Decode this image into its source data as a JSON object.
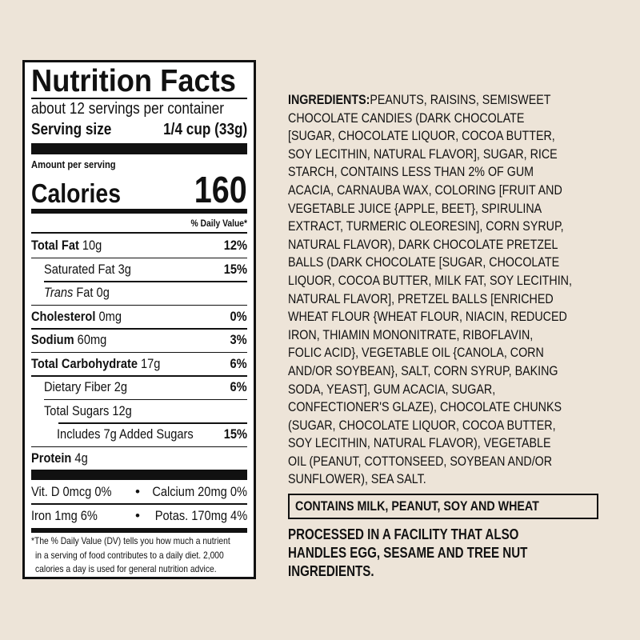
{
  "label": {
    "title": "Nutrition Facts",
    "servings": "about 12 servings per container",
    "serving_size_label": "Serving size",
    "serving_size_value": "1/4 cup (33g)",
    "amount_per_serving": "Amount per serving",
    "calories_label": "Calories",
    "calories_value": "160",
    "dv_header": "% Daily Value*",
    "nutrients": [
      {
        "name": "Total Fat",
        "amount": "10g",
        "dv": "12%"
      },
      {
        "name": "Saturated Fat",
        "amount": "3g",
        "dv": "15%"
      },
      {
        "name": "Trans",
        "name_rest": "Fat",
        "amount": "0g",
        "dv": ""
      },
      {
        "name": "Cholesterol",
        "amount": "0mg",
        "dv": "0%"
      },
      {
        "name": "Sodium",
        "amount": "60mg",
        "dv": "3%"
      },
      {
        "name": "Total Carbohydrate",
        "amount": "17g",
        "dv": "6%"
      },
      {
        "name": "Dietary Fiber",
        "amount": "2g",
        "dv": "6%"
      },
      {
        "name": "Total Sugars",
        "amount": "12g",
        "dv": ""
      },
      {
        "name": "Includes 7g Added Sugars",
        "amount": "",
        "dv": "15%"
      },
      {
        "name": "Protein",
        "amount": "4g",
        "dv": ""
      }
    ],
    "vitamins": [
      {
        "left": "Vit. D 0mcg 0%",
        "right": "Calcium 20mg 0%"
      },
      {
        "left": "Iron 1mg 6%",
        "right": "Potas. 170mg 4%"
      }
    ],
    "bullet": "•",
    "footnote": [
      "*The % Daily Value (DV) tells you how much a nutrient",
      "in a serving of food contributes to a daily diet. 2,000",
      "calories a day is used for general nutrition advice."
    ]
  },
  "ingredients": {
    "heading": "INGREDIENTS:",
    "lines": [
      " PEANUTS, RAISINS, SEMISWEET",
      "CHOCOLATE CANDIES (DARK CHOCOLATE",
      "[SUGAR, CHOCOLATE LIQUOR, COCOA BUTTER,",
      "SOY LECITHIN, NATURAL FLAVOR], SUGAR, RICE",
      "STARCH, CONTAINS LESS THAN 2% OF GUM",
      "ACACIA, CARNAUBA WAX, COLORING [FRUIT AND",
      "VEGETABLE JUICE {APPLE, BEET}, SPIRULINA",
      "EXTRACT, TURMERIC OLEORESIN], CORN SYRUP,",
      "NATURAL FLAVOR), DARK CHOCOLATE PRETZEL",
      "BALLS (DARK CHOCOLATE [SUGAR, CHOCOLATE",
      "LIQUOR, COCOA BUTTER, MILK FAT, SOY LECITHIN,",
      "NATURAL FLAVOR], PRETZEL BALLS [ENRICHED",
      "WHEAT FLOUR {WHEAT FLOUR, NIACIN, REDUCED",
      "IRON, THIAMIN MONONITRATE, RIBOFLAVIN,",
      "FOLIC ACID}, VEGETABLE OIL {CANOLA, CORN",
      "AND/OR SOYBEAN}, SALT, CORN SYRUP, BAKING",
      "SODA, YEAST], GUM ACACIA, SUGAR,",
      "CONFECTIONER'S GLAZE), CHOCOLATE CHUNKS",
      "(SUGAR, CHOCOLATE LIQUOR, COCOA BUTTER,",
      "SOY LECITHIN, NATURAL FLAVOR), VEGETABLE",
      "OIL (PEANUT, COTTONSEED, SOYBEAN AND/OR",
      "SUNFLOWER), SEA SALT."
    ],
    "contains": "CONTAINS MILK, PEANUT, SOY AND WHEAT",
    "facility": [
      "PROCESSED IN A FACILITY THAT ALSO",
      "HANDLES EGG, SESAME AND TREE NUT",
      "INGREDIENTS."
    ]
  },
  "colors": {
    "background": "#ede4d8",
    "label_bg": "#ffffff",
    "ink": "#111111"
  }
}
